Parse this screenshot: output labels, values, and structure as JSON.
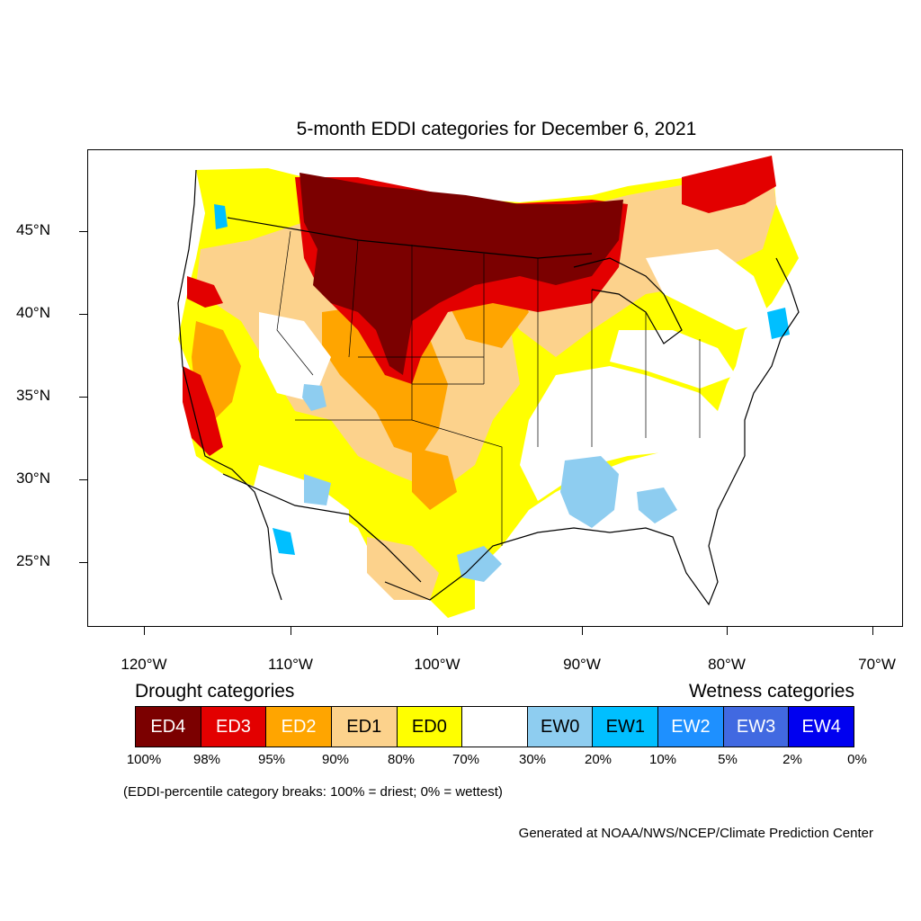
{
  "title": "5-month EDDI categories for December 6, 2021",
  "lat_labels": [
    "45°N",
    "40°N",
    "35°N",
    "30°N",
    "25°N"
  ],
  "lon_labels": [
    "120°W",
    "110°W",
    "100°W",
    "90°W",
    "80°W",
    "70°W"
  ],
  "legend": {
    "drought_title": "Drought categories",
    "wetness_title": "Wetness categories",
    "categories": [
      {
        "label": "ED4",
        "color": "#7b0000",
        "text_color": "#ffffff"
      },
      {
        "label": "ED3",
        "color": "#e30000",
        "text_color": "#ffffff"
      },
      {
        "label": "ED2",
        "color": "#ffa500",
        "text_color": "#ffffff"
      },
      {
        "label": "ED1",
        "color": "#fcd28c",
        "text_color": "#000000"
      },
      {
        "label": "ED0",
        "color": "#ffff00",
        "text_color": "#000000"
      },
      {
        "label": "",
        "color": "#ffffff",
        "text_color": "#000000"
      },
      {
        "label": "EW0",
        "color": "#8ecdf0",
        "text_color": "#000000"
      },
      {
        "label": "EW1",
        "color": "#00bfff",
        "text_color": "#000000"
      },
      {
        "label": "EW2",
        "color": "#1e90ff",
        "text_color": "#ffffff"
      },
      {
        "label": "EW3",
        "color": "#4169e1",
        "text_color": "#ffffff"
      },
      {
        "label": "EW4",
        "color": "#0000f0",
        "text_color": "#ffffff"
      }
    ],
    "percent_breaks": [
      "100%",
      "98%",
      "95%",
      "90%",
      "80%",
      "70%",
      "30%",
      "20%",
      "10%",
      "5%",
      "2%",
      "0%"
    ]
  },
  "note": "(EDDI-percentile category breaks: 100% = driest; 0% = wettest)",
  "credit": "Generated at NOAA/NWS/NCEP/Climate Prediction Center"
}
